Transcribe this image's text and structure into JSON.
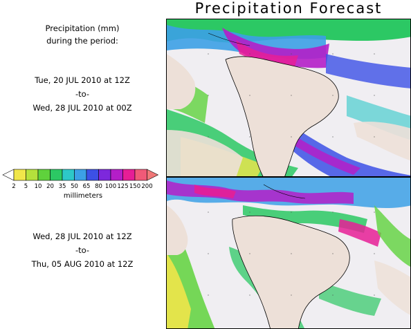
{
  "title": "Precipitation Forecast",
  "subtitle_line1": "Precipitation (mm)",
  "subtitle_line2": "during the period:",
  "periods": [
    {
      "start": "Tue, 20 JUL 2010 at 12Z",
      "sep": "-to-",
      "end": "Wed, 28 JUL 2010 at 00Z"
    },
    {
      "start": "Wed, 28 JUL 2010 at 12Z",
      "sep": "-to-",
      "end": "Thu, 05 AUG 2010 at 12Z"
    }
  ],
  "legend": {
    "units": "millimeters",
    "ticks": [
      "2",
      "5",
      "10",
      "20",
      "35",
      "50",
      "65",
      "80",
      "100",
      "125",
      "150",
      "200"
    ],
    "colors": [
      "#f0e64a",
      "#b4e13c",
      "#5fd23c",
      "#2cc864",
      "#2dc8c8",
      "#3ca0e6",
      "#3c50e6",
      "#7d28dc",
      "#b41ec8",
      "#e61e96",
      "#f05a78"
    ],
    "low_arrow_color": "#ffffff",
    "high_arrow_color": "#f07878"
  },
  "colors": {
    "land": "#ede0d8",
    "ocean_light": "#f0eef2"
  }
}
